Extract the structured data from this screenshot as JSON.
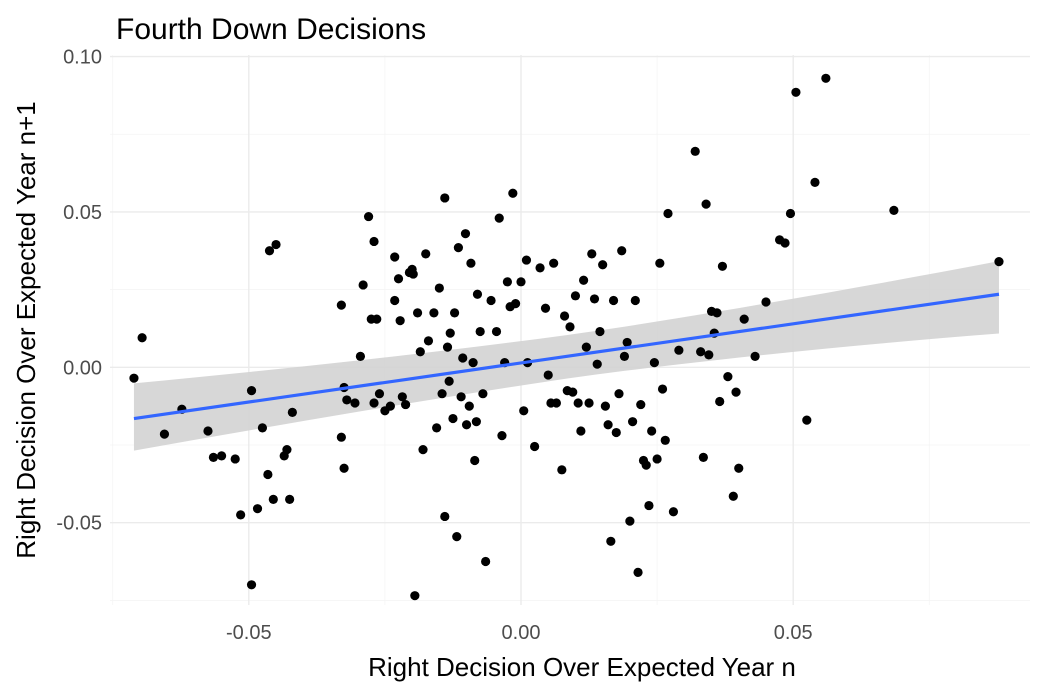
{
  "chart_data": {
    "type": "scatter",
    "title": "Fourth Down Decisions",
    "xlabel": "Right Decision Over Expected Year n",
    "ylabel": "Right Decision Over Expected Year n+1",
    "xlim": [
      -0.0755,
      0.0935
    ],
    "ylim": [
      -0.0765,
      0.1005
    ],
    "x_ticks": [
      -0.05,
      0.0,
      0.05
    ],
    "x_tick_labels": [
      "-0.05",
      "0.00",
      "0.05"
    ],
    "y_ticks": [
      -0.05,
      0.0,
      0.05,
      0.1
    ],
    "y_tick_labels": [
      "-0.05",
      "0.00",
      "0.05",
      "0.10"
    ],
    "grid": true,
    "trend": {
      "method": "linear",
      "x": [
        -0.0711,
        0.0878
      ],
      "y": [
        -0.0165,
        0.0235
      ],
      "ci_upper": [
        -0.0055,
        0.0345
      ],
      "ci_lower": [
        -0.0265,
        0.0105
      ],
      "line_color": "#3366ff",
      "band_color": "#d3d3d3"
    },
    "point_color": "#000000",
    "points": [
      [
        -0.0711,
        -0.0035
      ],
      [
        -0.0696,
        0.0095
      ],
      [
        -0.0655,
        -0.0215
      ],
      [
        -0.0623,
        -0.0135
      ],
      [
        -0.0575,
        -0.0205
      ],
      [
        -0.0565,
        -0.029
      ],
      [
        -0.055,
        -0.0285
      ],
      [
        -0.0525,
        -0.0295
      ],
      [
        -0.0515,
        -0.0475
      ],
      [
        -0.0495,
        -0.0075
      ],
      [
        -0.0495,
        -0.07
      ],
      [
        -0.0484,
        -0.0455
      ],
      [
        -0.0475,
        -0.0195
      ],
      [
        -0.0465,
        -0.0345
      ],
      [
        -0.0462,
        0.0375
      ],
      [
        -0.0455,
        -0.0425
      ],
      [
        -0.045,
        0.0395
      ],
      [
        -0.0435,
        -0.0285
      ],
      [
        -0.043,
        -0.0265
      ],
      [
        -0.0425,
        -0.0425
      ],
      [
        -0.042,
        -0.0145
      ],
      [
        -0.033,
        0.02
      ],
      [
        -0.033,
        -0.0225
      ],
      [
        -0.0325,
        -0.0325
      ],
      [
        -0.0325,
        -0.0065
      ],
      [
        -0.032,
        -0.0105
      ],
      [
        -0.0305,
        -0.0115
      ],
      [
        -0.0295,
        0.0035
      ],
      [
        -0.029,
        0.0265
      ],
      [
        -0.028,
        0.0485
      ],
      [
        -0.0275,
        0.0155
      ],
      [
        -0.027,
        0.0405
      ],
      [
        -0.027,
        -0.0115
      ],
      [
        -0.0265,
        0.0155
      ],
      [
        -0.026,
        -0.0085
      ],
      [
        -0.025,
        -0.014
      ],
      [
        -0.024,
        -0.0125
      ],
      [
        -0.0232,
        0.0355
      ],
      [
        -0.0232,
        0.0215
      ],
      [
        -0.0225,
        0.0285
      ],
      [
        -0.0222,
        0.015
      ],
      [
        -0.0218,
        -0.0095
      ],
      [
        -0.0212,
        -0.012
      ],
      [
        -0.0205,
        0.0305
      ],
      [
        -0.02,
        0.0315
      ],
      [
        -0.0198,
        0.03
      ],
      [
        -0.0195,
        -0.0735
      ],
      [
        -0.019,
        0.0175
      ],
      [
        -0.0185,
        0.005
      ],
      [
        -0.018,
        -0.0265
      ],
      [
        -0.0175,
        0.0365
      ],
      [
        -0.017,
        0.0085
      ],
      [
        -0.016,
        0.0175
      ],
      [
        -0.0155,
        -0.0195
      ],
      [
        -0.015,
        0.0255
      ],
      [
        -0.0145,
        -0.0085
      ],
      [
        -0.014,
        0.0545
      ],
      [
        -0.014,
        -0.048
      ],
      [
        -0.0135,
        0.0065
      ],
      [
        -0.0132,
        -0.0045
      ],
      [
        -0.013,
        0.011
      ],
      [
        -0.0125,
        -0.0165
      ],
      [
        -0.0122,
        0.0175
      ],
      [
        -0.0118,
        -0.0545
      ],
      [
        -0.0115,
        0.0385
      ],
      [
        -0.011,
        -0.0095
      ],
      [
        -0.0107,
        0.003
      ],
      [
        -0.0102,
        0.043
      ],
      [
        -0.01,
        -0.0185
      ],
      [
        -0.0095,
        -0.0125
      ],
      [
        -0.0092,
        0.0335
      ],
      [
        -0.0088,
        0.0015
      ],
      [
        -0.0085,
        -0.03
      ],
      [
        -0.0082,
        -0.0175
      ],
      [
        -0.008,
        0.0235
      ],
      [
        -0.0075,
        0.0115
      ],
      [
        -0.007,
        -0.0085
      ],
      [
        -0.0065,
        -0.0625
      ],
      [
        -0.0055,
        0.0215
      ],
      [
        -0.0045,
        0.0115
      ],
      [
        -0.004,
        0.048
      ],
      [
        -0.0035,
        -0.022
      ],
      [
        -0.003,
        0.0015
      ],
      [
        -0.0025,
        0.0275
      ],
      [
        -0.002,
        0.0195
      ],
      [
        -0.0015,
        0.056
      ],
      [
        -0.001,
        0.0205
      ],
      [
        0.0,
        0.0275
      ],
      [
        0.0005,
        -0.014
      ],
      [
        0.001,
        0.0345
      ],
      [
        0.0012,
        0.0015
      ],
      [
        0.0025,
        -0.0255
      ],
      [
        0.0035,
        0.032
      ],
      [
        0.0045,
        0.019
      ],
      [
        0.005,
        -0.0025
      ],
      [
        0.0055,
        -0.0115
      ],
      [
        0.006,
        0.0335
      ],
      [
        0.0065,
        -0.0115
      ],
      [
        0.0075,
        -0.033
      ],
      [
        0.008,
        0.0165
      ],
      [
        0.0085,
        -0.0075
      ],
      [
        0.009,
        0.013
      ],
      [
        0.0095,
        -0.008
      ],
      [
        0.01,
        0.023
      ],
      [
        0.0105,
        -0.0115
      ],
      [
        0.011,
        -0.0205
      ],
      [
        0.0115,
        0.028
      ],
      [
        0.012,
        0.0065
      ],
      [
        0.0125,
        -0.0115
      ],
      [
        0.013,
        0.0365
      ],
      [
        0.0135,
        0.022
      ],
      [
        0.014,
        0.001
      ],
      [
        0.0145,
        0.0115
      ],
      [
        0.015,
        0.033
      ],
      [
        0.0155,
        -0.0125
      ],
      [
        0.016,
        -0.0185
      ],
      [
        0.0165,
        -0.056
      ],
      [
        0.017,
        0.0215
      ],
      [
        0.0175,
        -0.021
      ],
      [
        0.018,
        -0.0085
      ],
      [
        0.0185,
        0.0375
      ],
      [
        0.019,
        0.0035
      ],
      [
        0.0195,
        0.008
      ],
      [
        0.02,
        -0.0495
      ],
      [
        0.0205,
        -0.0175
      ],
      [
        0.021,
        0.0215
      ],
      [
        0.0215,
        -0.066
      ],
      [
        0.022,
        -0.012
      ],
      [
        0.0225,
        -0.03
      ],
      [
        0.023,
        -0.0315
      ],
      [
        0.0235,
        -0.0445
      ],
      [
        0.024,
        -0.0205
      ],
      [
        0.0245,
        0.0015
      ],
      [
        0.025,
        -0.0295
      ],
      [
        0.0255,
        0.0335
      ],
      [
        0.026,
        -0.007
      ],
      [
        0.0265,
        -0.0235
      ],
      [
        0.027,
        0.0495
      ],
      [
        0.028,
        -0.0465
      ],
      [
        0.029,
        0.0055
      ],
      [
        0.032,
        0.0695
      ],
      [
        0.033,
        0.005
      ],
      [
        0.0335,
        -0.029
      ],
      [
        0.034,
        0.0525
      ],
      [
        0.0345,
        0.004
      ],
      [
        0.035,
        0.018
      ],
      [
        0.0355,
        0.011
      ],
      [
        0.036,
        0.0175
      ],
      [
        0.0365,
        -0.011
      ],
      [
        0.037,
        0.0325
      ],
      [
        0.038,
        -0.003
      ],
      [
        0.039,
        -0.0415
      ],
      [
        0.0395,
        -0.008
      ],
      [
        0.04,
        -0.0325
      ],
      [
        0.041,
        0.0155
      ],
      [
        0.043,
        0.0035
      ],
      [
        0.045,
        0.021
      ],
      [
        0.0475,
        0.041
      ],
      [
        0.0485,
        0.04
      ],
      [
        0.0495,
        0.0495
      ],
      [
        0.0505,
        0.0885
      ],
      [
        0.0525,
        -0.017
      ],
      [
        0.054,
        0.0595
      ],
      [
        0.056,
        0.093
      ],
      [
        0.0685,
        0.0505
      ],
      [
        0.0878,
        0.034
      ]
    ]
  }
}
